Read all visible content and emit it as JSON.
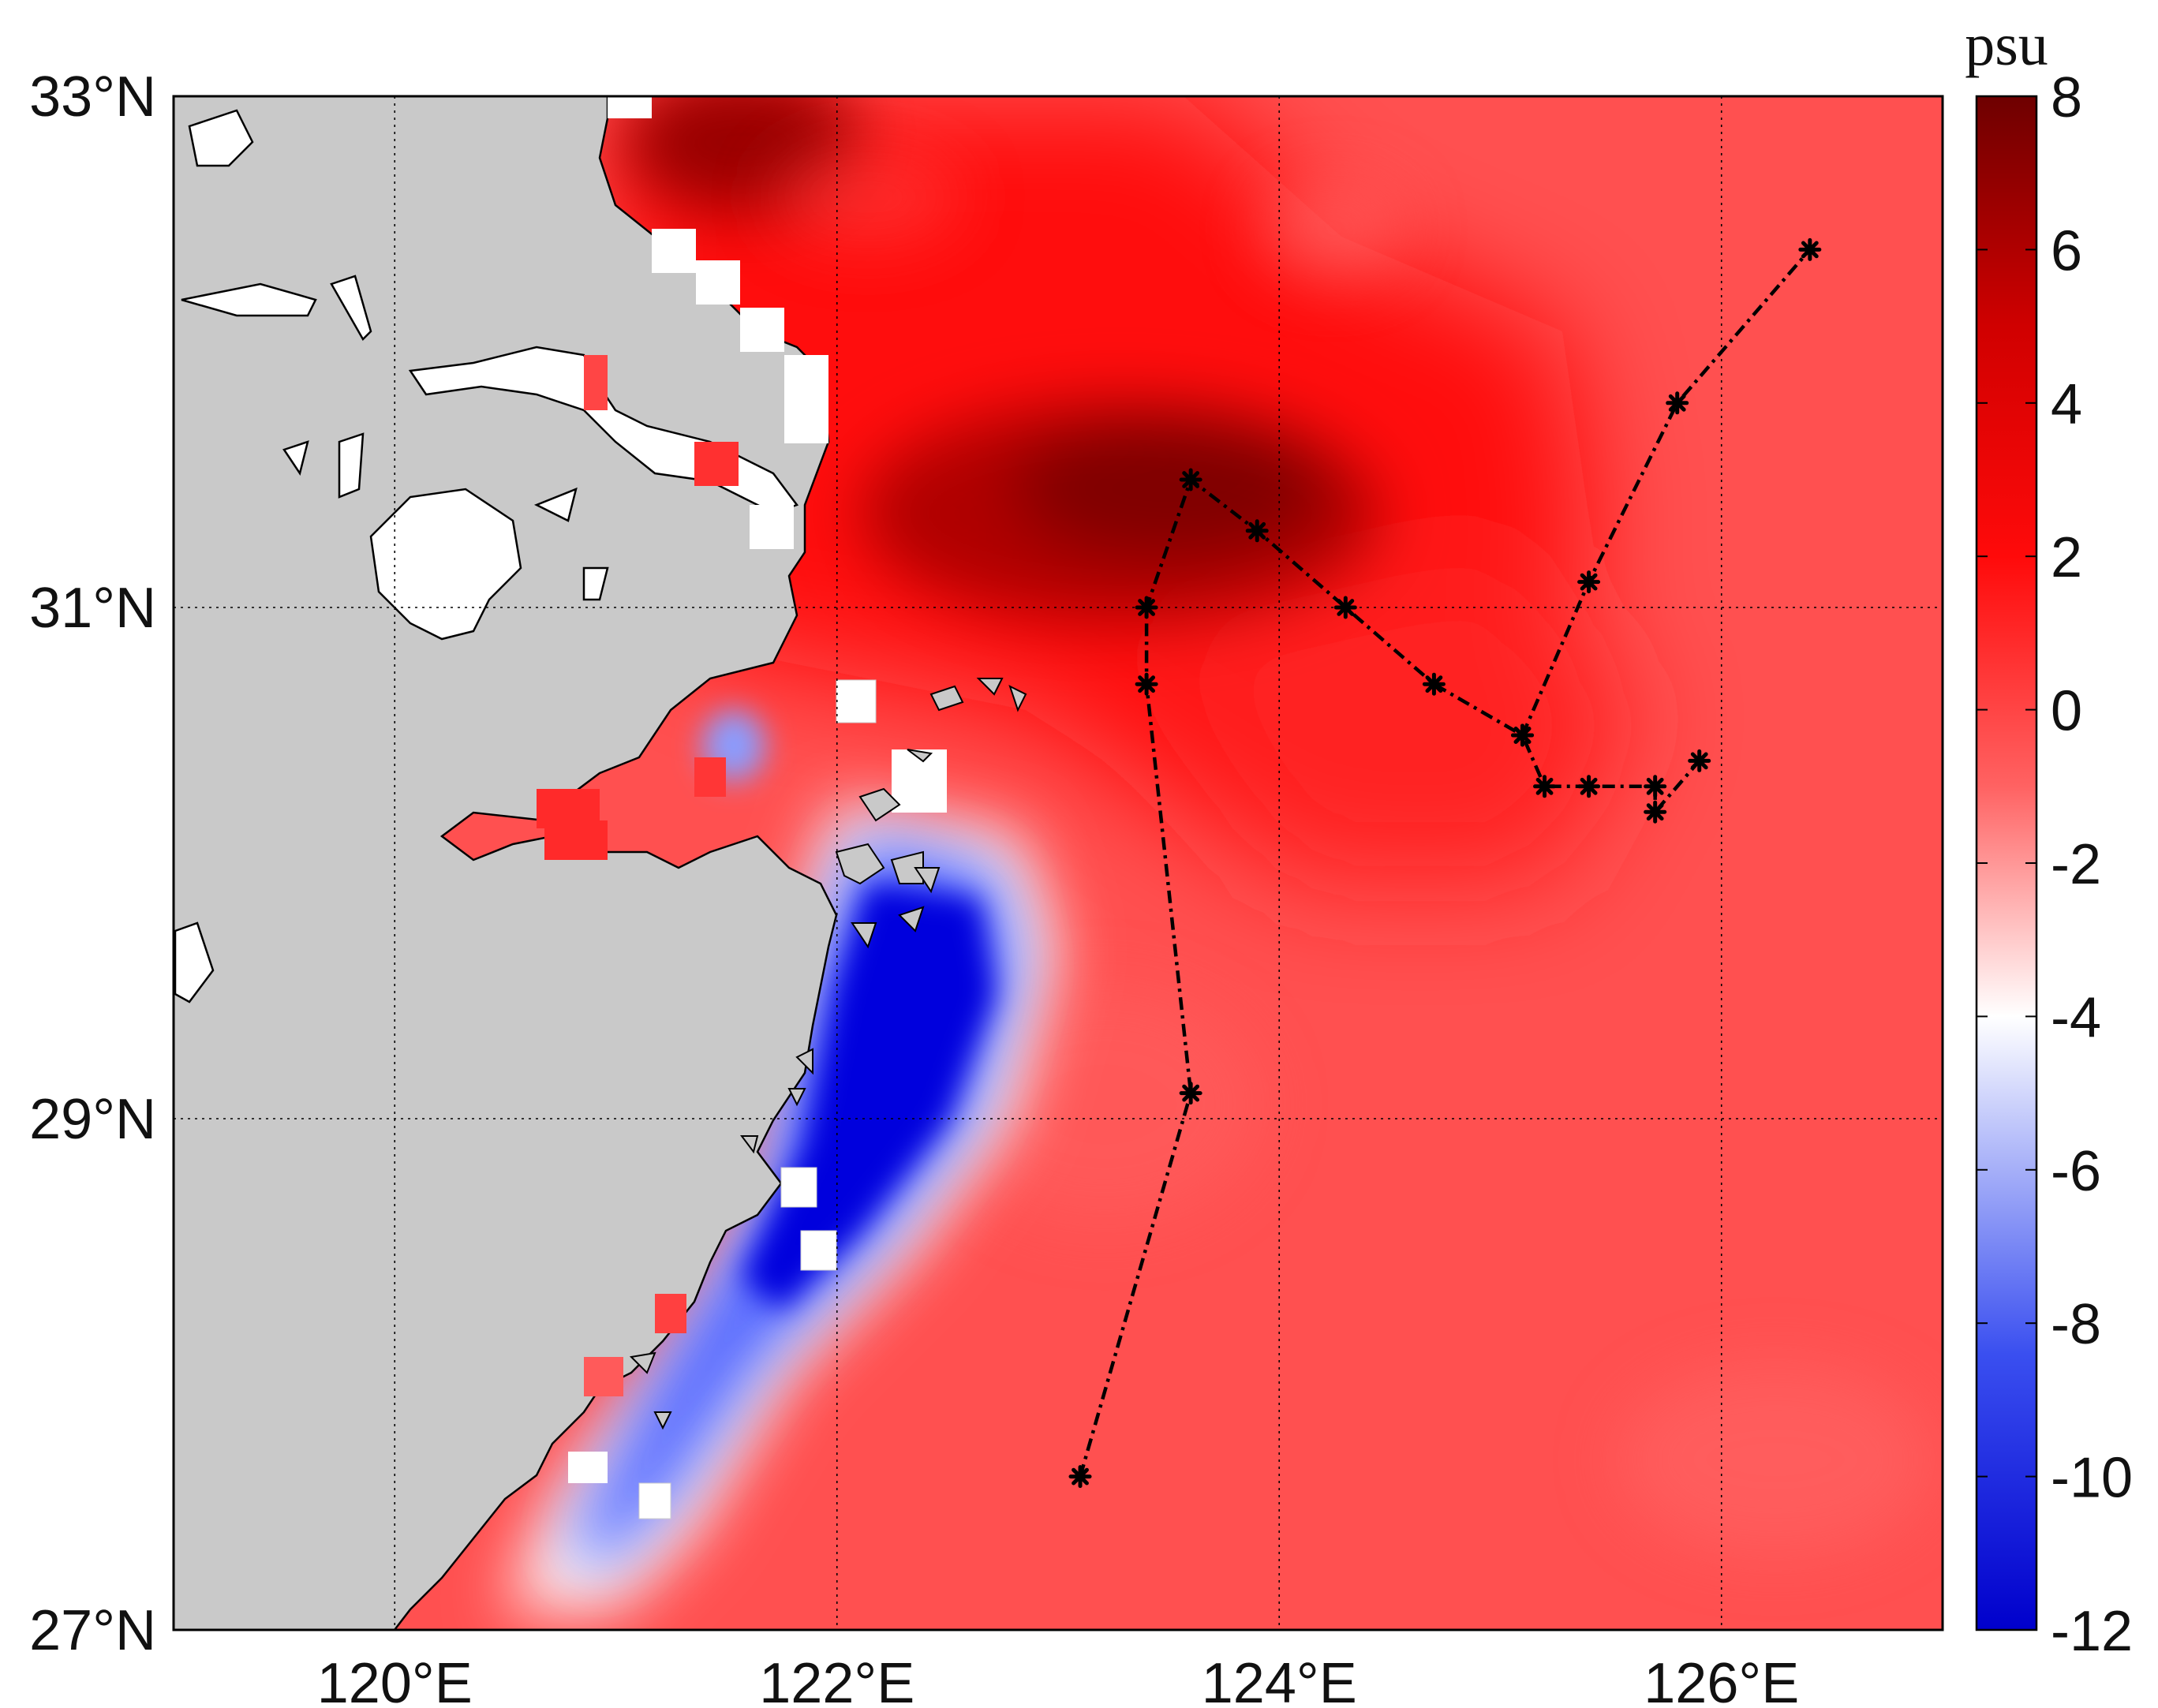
{
  "map": {
    "lon_range": [
      119,
      127
    ],
    "lat_range": [
      27,
      33
    ],
    "lon_ticks": [
      120,
      122,
      124,
      126
    ],
    "lat_ticks": [
      27,
      29,
      31,
      33
    ],
    "lon_labels": [
      "120°E",
      "122°E",
      "124°E",
      "126°E"
    ],
    "lat_labels": [
      "27°N",
      "29°N",
      "31°N",
      "33°N"
    ],
    "land_color": "#c9c9c9",
    "grid": "dotted"
  },
  "colorbar": {
    "unit": "psu",
    "range": [
      -12,
      8
    ],
    "ticks": [
      8,
      6,
      4,
      2,
      0,
      -2,
      -4,
      -6,
      -8,
      -10,
      -12
    ],
    "tick_labels": [
      "8",
      "6",
      "4",
      "2",
      "0",
      "-2",
      "-4",
      "-6",
      "-8",
      "-10",
      "-12"
    ],
    "colormap": [
      "#0000cc",
      "#3a4ff0",
      "#ffffff",
      "#ff4646",
      "#ff0000",
      "#6e0000"
    ]
  },
  "chart_data": {
    "type": "heatmap",
    "colorbar_unit": "psu",
    "value_range": [
      -12,
      8
    ],
    "background_value": 0,
    "features": [
      {
        "kind": "max",
        "lon": 123.3,
        "lat": 31.4,
        "value": 7
      },
      {
        "kind": "max",
        "lon": 121.5,
        "lat": 32.8,
        "value": 6.5
      },
      {
        "kind": "plume",
        "lon": 122.3,
        "lat": 31.5,
        "value": 4
      },
      {
        "kind": "min",
        "lon": 122.4,
        "lat": 29.3,
        "value": -12
      },
      {
        "kind": "min",
        "lon": 121.9,
        "lat": 28.5,
        "value": -11
      },
      {
        "kind": "min",
        "lon": 121.3,
        "lat": 27.8,
        "value": -8
      }
    ],
    "sections": [
      {
        "name": "",
        "points": [
          [
            123.1,
            27.6
          ],
          [
            123.6,
            29.1
          ],
          [
            123.4,
            30.7
          ],
          [
            123.4,
            31.0
          ],
          [
            123.6,
            31.5
          ],
          [
            123.9,
            31.3
          ],
          [
            124.3,
            31.0
          ],
          [
            124.7,
            30.7
          ],
          [
            125.1,
            30.5
          ],
          [
            125.2,
            30.3
          ],
          [
            125.4,
            30.3
          ],
          [
            125.7,
            30.3
          ],
          [
            125.7,
            30.2
          ],
          [
            125.9,
            30.4
          ]
        ]
      },
      {
        "name": "",
        "points": [
          [
            125.1,
            30.5
          ],
          [
            125.4,
            31.1
          ],
          [
            125.8,
            31.8
          ],
          [
            126.4,
            32.4
          ]
        ]
      }
    ]
  }
}
